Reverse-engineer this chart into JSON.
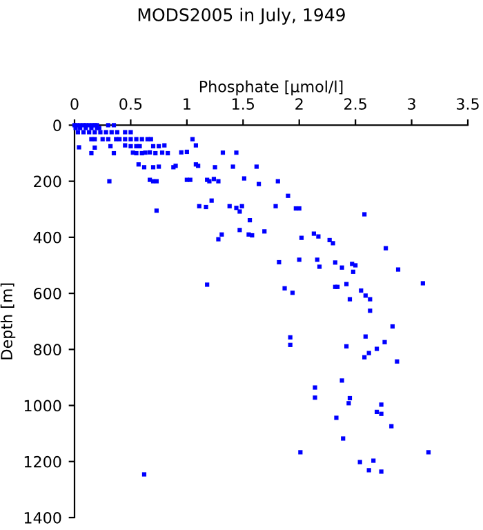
{
  "chart_data": {
    "type": "scatter",
    "title": "MODS2005 in July, 1949",
    "xlabel": "Phosphate [µmol/l]",
    "ylabel": "Depth [m]",
    "x": [
      0,
      0.02,
      0.05,
      0.08,
      0.1,
      0.13,
      0.16,
      0.18,
      0.2,
      0.3,
      0.35,
      0.01,
      0.05,
      0.1,
      0.15,
      0.2,
      0.22,
      0.03,
      0.08,
      0.13,
      0.18,
      0.23,
      0.28,
      0.33,
      0.38,
      0.45,
      0.5,
      0.15,
      0.18,
      0.25,
      0.3,
      0.37,
      0.4,
      0.45,
      0.5,
      0.55,
      0.6,
      0.65,
      0.68,
      1.05,
      0.04,
      0.18,
      0.32,
      0.45,
      0.5,
      0.55,
      0.58,
      0.7,
      0.75,
      0.8,
      1.08,
      0.15,
      0.35,
      0.52,
      0.55,
      0.6,
      0.63,
      0.67,
      0.72,
      0.78,
      0.83,
      0.95,
      1.0,
      1.32,
      1.44,
      0.57,
      0.62,
      0.7,
      0.75,
      0.88,
      0.9,
      1.08,
      1.1,
      1.25,
      1.41,
      1.62,
      0.31,
      0.67,
      0.7,
      0.73,
      1.0,
      1.03,
      1.18,
      1.2,
      1.24,
      1.28,
      1.51,
      1.64,
      1.81,
      1.22,
      1.11,
      1.17,
      1.38,
      1.44,
      1.47,
      1.49,
      0.73,
      1.9,
      1.79,
      1.97,
      2.0,
      1.56,
      2.58,
      1.47,
      1.28,
      1.31,
      1.55,
      1.58,
      1.69,
      2.02,
      2.13,
      2.17,
      2.27,
      2.3,
      2.77,
      1.82,
      2.0,
      2.16,
      2.18,
      2.32,
      2.38,
      2.47,
      2.5,
      2.48,
      2.88,
      3.1,
      1.87,
      1.94,
      2.32,
      2.34,
      2.42,
      2.45,
      2.55,
      2.59,
      2.63,
      1.18,
      2.63,
      2.83,
      1.92,
      1.92,
      2.59,
      2.76,
      2.42,
      2.69,
      2.62,
      2.58,
      2.87,
      2.14,
      2.14,
      2.38,
      2.45,
      2.44,
      2.73,
      2.69,
      2.73,
      2.33,
      2.82,
      2.39,
      2.01,
      3.15,
      2.54,
      2.66,
      2.62,
      2.73,
      0.62
    ],
    "series": [
      {
        "color": "#0000ff",
        "values": [
          0,
          0,
          0,
          0,
          0,
          0,
          0,
          0,
          0,
          0,
          0,
          10,
          10,
          10,
          10,
          10,
          10,
          25,
          25,
          25,
          25,
          25,
          25,
          25,
          25,
          25,
          25,
          50,
          50,
          50,
          50,
          50,
          50,
          50,
          50,
          50,
          50,
          50,
          50,
          50,
          79,
          80,
          75,
          72,
          75,
          75,
          75,
          75,
          75,
          72,
          72,
          100,
          100,
          98,
          100,
          100,
          98,
          97,
          100,
          98,
          100,
          97,
          95,
          98,
          98,
          140,
          150,
          150,
          148,
          150,
          145,
          140,
          145,
          150,
          148,
          148,
          200,
          195,
          200,
          200,
          195,
          195,
          195,
          200,
          192,
          200,
          190,
          210,
          200,
          269,
          289,
          292,
          289,
          295,
          308,
          289,
          305,
          252,
          289,
          297,
          297,
          339,
          318,
          374,
          407,
          390,
          390,
          393,
          379,
          402,
          387,
          397,
          410,
          421,
          439,
          489,
          480,
          480,
          505,
          490,
          508,
          495,
          500,
          523,
          515,
          564,
          582,
          598,
          577,
          577,
          567,
          621,
          590,
          608,
          621,
          569,
          662,
          718,
          757,
          784,
          754,
          774,
          789,
          798,
          813,
          828,
          843,
          936,
          972,
          911,
          974,
          992,
          997,
          1023,
          1030,
          1044,
          1074,
          1118,
          1167,
          1167,
          1202,
          1197,
          1231,
          1236,
          1246
        ]
      }
    ],
    "marker": "square",
    "xlim": [
      0,
      3.5
    ],
    "xticks": [
      0,
      0.5,
      1,
      1.5,
      2,
      2.5,
      3,
      3.5
    ],
    "ylim": [
      1400,
      0
    ],
    "yticks": [
      0,
      200,
      400,
      600,
      800,
      1000,
      1200,
      1400
    ]
  }
}
